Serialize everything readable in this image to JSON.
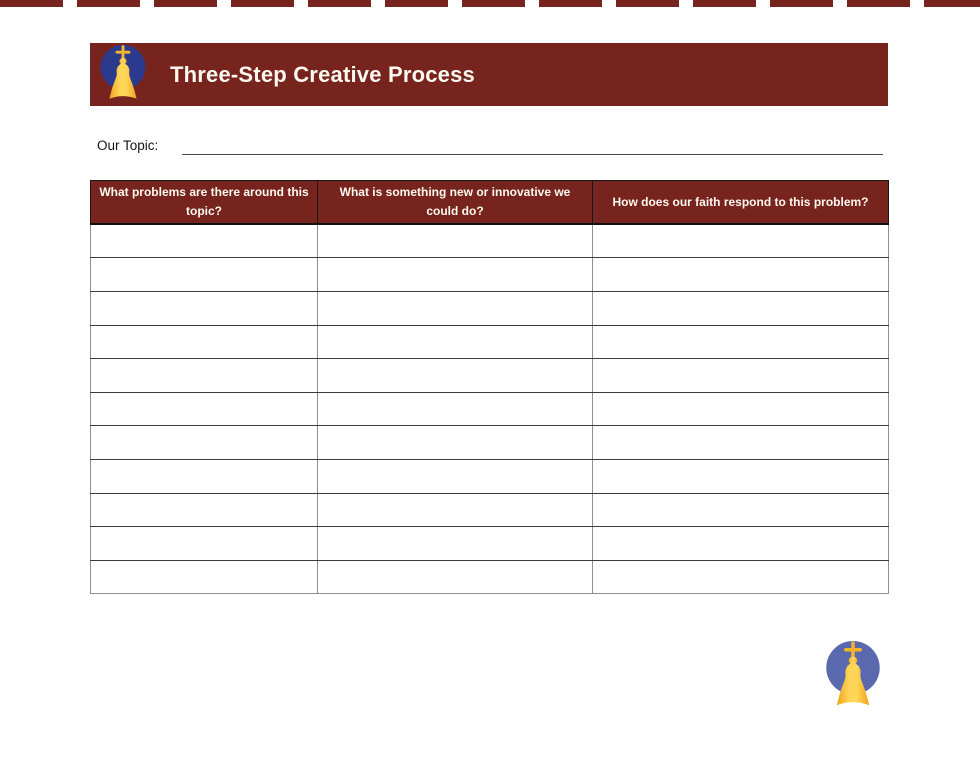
{
  "colors": {
    "maroon": "#76241d",
    "banner_text": "#fdf8f0",
    "circle_top": "#2c3a8e",
    "circle_bottom": "#5a68ae",
    "gold_dark": "#efa31c",
    "gold_light": "#ffd557"
  },
  "header": {
    "title": "Three-Step Creative Process",
    "logo_icon": "church-dome-logo"
  },
  "topic": {
    "label": "Our Topic:",
    "value": ""
  },
  "table": {
    "columns": [
      "What problems are there around this topic?",
      "What is something new or innovative we could do?",
      "How does our faith respond to this problem?"
    ],
    "rows": [
      [
        "",
        "",
        ""
      ],
      [
        "",
        "",
        ""
      ],
      [
        "",
        "",
        ""
      ],
      [
        "",
        "",
        ""
      ],
      [
        "",
        "",
        ""
      ],
      [
        "",
        "",
        ""
      ],
      [
        "",
        "",
        ""
      ],
      [
        "",
        "",
        ""
      ],
      [
        "",
        "",
        ""
      ],
      [
        "",
        "",
        ""
      ],
      [
        "",
        "",
        ""
      ]
    ]
  },
  "footer": {
    "logo_icon": "church-dome-logo"
  }
}
